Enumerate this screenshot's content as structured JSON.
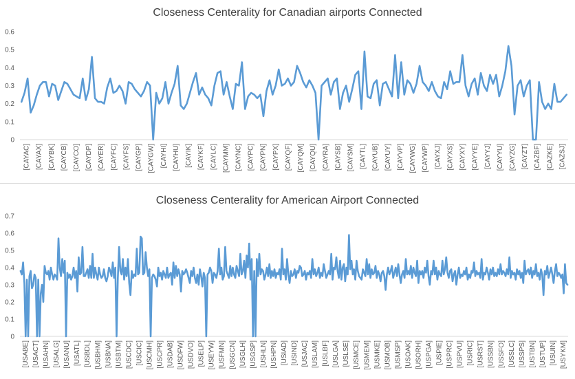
{
  "chart_data": [
    {
      "type": "line",
      "title": "Closeness Centerality for Canadian airports Connected",
      "color": "#5b9bd5",
      "ylim": [
        0,
        0.6
      ],
      "yticks": [
        0,
        0.1,
        0.2,
        0.3,
        0.4,
        0.5,
        0.6
      ],
      "grid": false,
      "legend": "none",
      "tick_labels": [
        "[CAYAC]",
        "[CAYAX]",
        "[CAYBK]",
        "[CAYCB]",
        "[CAYCO]",
        "[CAYDP]",
        "[CAYER]",
        "[CAYFC]",
        "[CAYFS]",
        "[CAYGP]",
        "[CAYGW]",
        "[CAYHI]",
        "[CAYHU]",
        "[CAYIK]",
        "[CAYKF]",
        "[CAYLC]",
        "[CAYMM]",
        "[CAYNC]",
        "[CAYPC]",
        "[CAYPN]",
        "[CAYPX]",
        "[CAYQF]",
        "[CAYQM]",
        "[CAYQU]",
        "[CAYRA]",
        "[CAYSB]",
        "[CAYSM]",
        "[CAYTL]",
        "[CAYUB]",
        "[CAYUY]",
        "[CAYVP]",
        "[CAYWG]",
        "[CAYWP]",
        "[CAYXJ]",
        "[CAYXS]",
        "[CAYXY]",
        "[CAYYE]",
        "[CAYYJ]",
        "[CAYYU]",
        "[CAYZG]",
        "[CAYZT]",
        "[CAZBF]",
        "[CAZKE]",
        "[CAZSJ]"
      ],
      "values": [
        0.21,
        0.26,
        0.34,
        0.15,
        0.19,
        0.25,
        0.3,
        0.32,
        0.32,
        0.24,
        0.31,
        0.3,
        0.22,
        0.27,
        0.32,
        0.31,
        0.28,
        0.25,
        0.24,
        0.23,
        0.34,
        0.22,
        0.28,
        0.46,
        0.23,
        0.21,
        0.21,
        0.2,
        0.29,
        0.34,
        0.26,
        0.27,
        0.3,
        0.27,
        0.2,
        0.32,
        0.31,
        0.28,
        0.26,
        0.24,
        0.27,
        0.32,
        0.3,
        0.0,
        0.26,
        0.2,
        0.23,
        0.32,
        0.2,
        0.26,
        0.31,
        0.41,
        0.19,
        0.17,
        0.2,
        0.26,
        0.32,
        0.37,
        0.25,
        0.29,
        0.25,
        0.23,
        0.19,
        0.3,
        0.37,
        0.38,
        0.25,
        0.32,
        0.24,
        0.17,
        0.31,
        0.3,
        0.43,
        0.17,
        0.24,
        0.26,
        0.25,
        0.23,
        0.25,
        0.13,
        0.27,
        0.33,
        0.25,
        0.3,
        0.39,
        0.3,
        0.31,
        0.34,
        0.3,
        0.32,
        0.41,
        0.37,
        0.32,
        0.29,
        0.33,
        0.3,
        0.26,
        0.0,
        0.3,
        0.32,
        0.34,
        0.25,
        0.32,
        0.34,
        0.17,
        0.26,
        0.3,
        0.21,
        0.28,
        0.36,
        0.38,
        0.17,
        0.49,
        0.24,
        0.23,
        0.31,
        0.33,
        0.19,
        0.31,
        0.32,
        0.28,
        0.24,
        0.47,
        0.23,
        0.43,
        0.25,
        0.33,
        0.31,
        0.26,
        0.31,
        0.41,
        0.32,
        0.3,
        0.27,
        0.32,
        0.27,
        0.24,
        0.23,
        0.32,
        0.28,
        0.38,
        0.31,
        0.32,
        0.32,
        0.47,
        0.3,
        0.24,
        0.31,
        0.34,
        0.25,
        0.37,
        0.3,
        0.27,
        0.36,
        0.31,
        0.36,
        0.24,
        0.3,
        0.38,
        0.52,
        0.41,
        0.14,
        0.3,
        0.33,
        0.24,
        0.3,
        0.33,
        0.0,
        0.0,
        0.32,
        0.21,
        0.17,
        0.2,
        0.17,
        0.31,
        0.21,
        0.21,
        0.23,
        0.25
      ]
    },
    {
      "type": "line",
      "title": "Closeness Centerality for American Airport Connected",
      "color": "#5b9bd5",
      "ylim": [
        0,
        0.7
      ],
      "yticks": [
        0,
        0.1,
        0.2,
        0.3,
        0.4,
        0.5,
        0.6,
        0.7
      ],
      "grid": false,
      "legend": "none",
      "tick_labels": [
        "[USABE]",
        "[USACT]",
        "[USAHN]",
        "[USALG]",
        "[USANU]",
        "[USATL]",
        "[USBDL]",
        "[USBHM]",
        "[USBNA]",
        "[USBTM]",
        "[USCDC]",
        "[USCIC]",
        "[USCMH]",
        "[USCPR]",
        "[USDAB]",
        "[USDFW]",
        "[USDVO]",
        "[USELP]",
        "[USEYW]",
        "[USFMN]",
        "[USGCN]",
        "[USGLH]",
        "[USGSP]",
        "[USHLN]",
        "[USHPN]",
        "[USIAD]",
        "[USIND]",
        "[USJAC]",
        "[USLAM]",
        "[USLBF]",
        "[USLGA]",
        "[USLSE]",
        "[USMCE]",
        "[USMEM]",
        "[USMKE]",
        "[USMOB]",
        "[USMSP]",
        "[USOAK]",
        "[USORH]",
        "[USPGA]",
        "[USPIE]",
        "[USPRC]",
        "[USPVU]",
        "[USRIC]",
        "[USRST]",
        "[USSBN]",
        "[USSFO]",
        "[USSLC]",
        "[USSPS]",
        "[USTBN]",
        "[USTUP]",
        "[USUIN]",
        "[USYKM]"
      ],
      "values": [
        0.38,
        0.36,
        0.43,
        0.31,
        0.0,
        0.33,
        0.0,
        0.35,
        0.38,
        0.28,
        0.3,
        0.36,
        0.34,
        0.0,
        0.33,
        0.0,
        0.25,
        0.3,
        0.2,
        0.41,
        0.37,
        0.36,
        0.38,
        0.33,
        0.4,
        0.36,
        0.33,
        0.36,
        0.35,
        0.33,
        0.57,
        0.4,
        0.35,
        0.45,
        0.37,
        0.44,
        0.0,
        0.37,
        0.34,
        0.36,
        0.33,
        0.35,
        0.4,
        0.34,
        0.38,
        0.26,
        0.46,
        0.36,
        0.37,
        0.52,
        0.35,
        0.35,
        0.37,
        0.39,
        0.34,
        0.41,
        0.34,
        0.48,
        0.34,
        0.4,
        0.36,
        0.33,
        0.4,
        0.36,
        0.34,
        0.35,
        0.39,
        0.34,
        0.32,
        0.35,
        0.4,
        0.38,
        0.35,
        0.43,
        0.34,
        0.4,
        0.0,
        0.34,
        0.52,
        0.38,
        0.36,
        0.45,
        0.33,
        0.4,
        0.35,
        0.45,
        0.31,
        0.24,
        0.38,
        0.34,
        0.36,
        0.35,
        0.51,
        0.36,
        0.37,
        0.58,
        0.57,
        0.36,
        0.37,
        0.49,
        0.4,
        0.35,
        0.39,
        0.0,
        0.34,
        0.36,
        0.35,
        0.33,
        0.29,
        0.4,
        0.35,
        0.37,
        0.33,
        0.38,
        0.36,
        0.34,
        0.4,
        0.34,
        0.36,
        0.37,
        0.3,
        0.43,
        0.34,
        0.41,
        0.35,
        0.39,
        0.36,
        0.26,
        0.38,
        0.36,
        0.37,
        0.39,
        0.37,
        0.34,
        0.31,
        0.38,
        0.35,
        0.4,
        0.34,
        0.31,
        0.36,
        0.3,
        0.39,
        0.35,
        0.29,
        0.37,
        0.34,
        0.0,
        0.36,
        0.37,
        0.4,
        0.38,
        0.31,
        0.37,
        0.36,
        0.34,
        0.38,
        0.51,
        0.36,
        0.4,
        0.33,
        0.35,
        0.52,
        0.38,
        0.36,
        0.34,
        0.41,
        0.35,
        0.4,
        0.36,
        0.34,
        0.41,
        0.38,
        0.35,
        0.48,
        0.36,
        0.38,
        0.44,
        0.34,
        0.47,
        0.4,
        0.54,
        0.33,
        0.45,
        0.0,
        0.38,
        0.0,
        0.45,
        0.35,
        0.48,
        0.36,
        0.39,
        0.38,
        0.33,
        0.36,
        0.4,
        0.35,
        0.42,
        0.34,
        0.38,
        0.35,
        0.39,
        0.34,
        0.37,
        0.36,
        0.39,
        0.33,
        0.51,
        0.36,
        0.39,
        0.33,
        0.45,
        0.36,
        0.31,
        0.38,
        0.35,
        0.36,
        0.39,
        0.34,
        0.38,
        0.37,
        0.41,
        0.4,
        0.35,
        0.36,
        0.38,
        0.33,
        0.37,
        0.36,
        0.38,
        0.34,
        0.45,
        0.36,
        0.39,
        0.35,
        0.37,
        0.4,
        0.34,
        0.37,
        0.35,
        0.42,
        0.38,
        0.34,
        0.36,
        0.38,
        0.36,
        0.48,
        0.33,
        0.4,
        0.39,
        0.46,
        0.38,
        0.34,
        0.44,
        0.33,
        0.4,
        0.42,
        0.32,
        0.4,
        0.36,
        0.59,
        0.39,
        0.44,
        0.36,
        0.39,
        0.33,
        0.44,
        0.38,
        0.35,
        0.34,
        0.33,
        0.39,
        0.37,
        0.35,
        0.45,
        0.36,
        0.42,
        0.34,
        0.39,
        0.36,
        0.37,
        0.41,
        0.34,
        0.38,
        0.36,
        0.32,
        0.37,
        0.38,
        0.35,
        0.27,
        0.36,
        0.4,
        0.36,
        0.38,
        0.41,
        0.34,
        0.37,
        0.4,
        0.35,
        0.42,
        0.36,
        0.31,
        0.36,
        0.38,
        0.34,
        0.45,
        0.36,
        0.38,
        0.36,
        0.41,
        0.34,
        0.4,
        0.37,
        0.35,
        0.44,
        0.31,
        0.38,
        0.36,
        0.38,
        0.34,
        0.4,
        0.37,
        0.44,
        0.35,
        0.3,
        0.38,
        0.36,
        0.44,
        0.36,
        0.4,
        0.33,
        0.38,
        0.36,
        0.35,
        0.44,
        0.36,
        0.39,
        0.46,
        0.37,
        0.34,
        0.38,
        0.39,
        0.32,
        0.36,
        0.38,
        0.3,
        0.36,
        0.4,
        0.34,
        0.36,
        0.35,
        0.38,
        0.36,
        0.4,
        0.33,
        0.36,
        0.34,
        0.38,
        0.37,
        0.43,
        0.35,
        0.38,
        0.36,
        0.37,
        0.34,
        0.45,
        0.33,
        0.37,
        0.36,
        0.4,
        0.37,
        0.33,
        0.39,
        0.36,
        0.4,
        0.35,
        0.37,
        0.35,
        0.39,
        0.36,
        0.42,
        0.36,
        0.38,
        0.37,
        0.35,
        0.39,
        0.36,
        0.46,
        0.34,
        0.38,
        0.36,
        0.37,
        0.33,
        0.39,
        0.36,
        0.38,
        0.34,
        0.37,
        0.31,
        0.44,
        0.36,
        0.38,
        0.39,
        0.36,
        0.4,
        0.34,
        0.38,
        0.36,
        0.42,
        0.35,
        0.37,
        0.33,
        0.39,
        0.36,
        0.24,
        0.38,
        0.36,
        0.41,
        0.34,
        0.37,
        0.4,
        0.36,
        0.31,
        0.38,
        0.42,
        0.35,
        0.37,
        0.36,
        0.34,
        0.36,
        0.25,
        0.42,
        0.31,
        0.3
      ]
    }
  ]
}
